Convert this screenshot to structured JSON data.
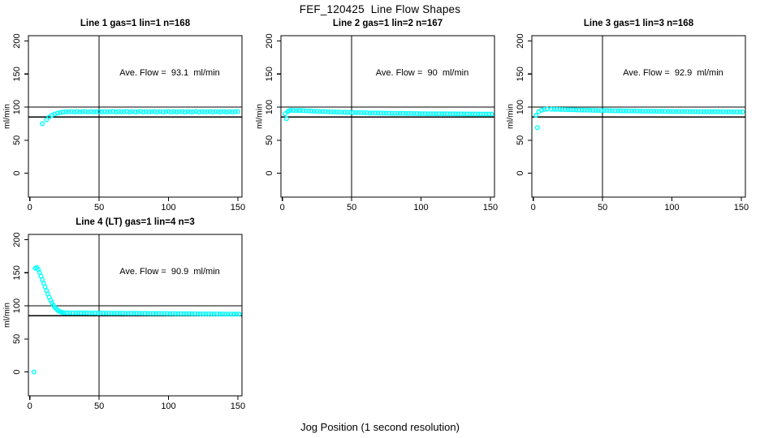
{
  "figure": {
    "title": "FEF_120425  Line Flow Shapes",
    "xlabel": "Jog Position (1 second resolution)",
    "background": "#ffffff",
    "point_color": "#00ffff",
    "line_color": "#000000"
  },
  "chart_data": [
    {
      "type": "scatter",
      "title": "Line 1 gas=1 lin=1 n=168",
      "annotation": "Ave. Flow =  93.1  ml/min",
      "ave_flow_ml_min": 93.1,
      "n": 168,
      "ylabel": "ml/min",
      "xlim": [
        -1,
        153
      ],
      "ylim": [
        -36,
        208
      ],
      "xticks": [
        0,
        50,
        100,
        150
      ],
      "yticks": [
        0,
        50,
        100,
        150,
        200
      ],
      "hlines": [
        85,
        100
      ],
      "vline": 50,
      "grid": false,
      "points": [
        [
          9,
          75
        ],
        [
          12,
          81
        ],
        [
          14,
          85
        ],
        [
          16,
          87.8
        ],
        [
          18,
          89.6
        ],
        [
          20,
          90.9
        ],
        [
          22,
          91.8
        ],
        [
          24,
          92.4
        ],
        [
          26,
          92.8
        ],
        [
          28,
          93.0
        ],
        [
          30,
          93.4
        ],
        [
          32,
          92.6
        ],
        [
          34,
          93.2
        ],
        [
          36,
          92.8
        ],
        [
          38,
          93.0
        ],
        [
          40,
          93.4
        ],
        [
          42,
          92.6
        ],
        [
          44,
          93.2
        ],
        [
          46,
          92.8
        ],
        [
          48,
          93.0
        ],
        [
          50,
          93.4
        ],
        [
          52,
          92.6
        ],
        [
          54,
          93.2
        ],
        [
          56,
          92.8
        ],
        [
          58,
          93.0
        ],
        [
          60,
          93.4
        ],
        [
          62,
          92.6
        ],
        [
          64,
          93.2
        ],
        [
          66,
          92.8
        ],
        [
          68,
          93.0
        ],
        [
          70,
          93.4
        ],
        [
          72,
          92.6
        ],
        [
          74,
          93.2
        ],
        [
          76,
          92.8
        ],
        [
          78,
          93.0
        ],
        [
          80,
          93.4
        ],
        [
          82,
          92.6
        ],
        [
          84,
          93.2
        ],
        [
          86,
          92.8
        ],
        [
          88,
          93.0
        ],
        [
          90,
          93.4
        ],
        [
          92,
          92.6
        ],
        [
          94,
          93.2
        ],
        [
          96,
          92.8
        ],
        [
          98,
          93.0
        ],
        [
          100,
          93.4
        ],
        [
          102,
          92.6
        ],
        [
          104,
          93.2
        ],
        [
          106,
          92.8
        ],
        [
          108,
          93.0
        ],
        [
          110,
          93.4
        ],
        [
          112,
          92.6
        ],
        [
          114,
          93.2
        ],
        [
          116,
          92.8
        ],
        [
          118,
          93.0
        ],
        [
          120,
          93.4
        ],
        [
          122,
          92.6
        ],
        [
          124,
          93.2
        ],
        [
          126,
          92.8
        ],
        [
          128,
          93.0
        ],
        [
          130,
          93.4
        ],
        [
          132,
          92.6
        ],
        [
          134,
          93.2
        ],
        [
          136,
          92.8
        ],
        [
          138,
          93.0
        ],
        [
          140,
          93.4
        ],
        [
          142,
          92.6
        ],
        [
          144,
          93.2
        ],
        [
          146,
          92.8
        ],
        [
          148,
          93.0
        ],
        [
          150,
          93.4
        ]
      ]
    },
    {
      "type": "scatter",
      "title": "Line 2 gas=1 lin=2 n=167",
      "annotation": "Ave. Flow =  90  ml/min",
      "ave_flow_ml_min": 90,
      "n": 167,
      "ylabel": "ml/min",
      "xlim": [
        -1,
        153
      ],
      "ylim": [
        -36,
        208
      ],
      "xticks": [
        0,
        50,
        100,
        150
      ],
      "yticks": [
        0,
        50,
        100,
        150,
        200
      ],
      "hlines": [
        85,
        100
      ],
      "vline": 50,
      "grid": false,
      "points": [
        [
          3,
          82.5
        ],
        [
          2,
          90
        ],
        [
          4,
          93.5
        ],
        [
          5,
          94.5
        ],
        [
          6,
          95.2
        ],
        [
          8,
          95.1
        ],
        [
          10,
          94.9
        ],
        [
          12,
          94.8
        ],
        [
          13,
          94.8
        ],
        [
          15,
          94.7
        ],
        [
          17,
          94.5
        ],
        [
          19,
          94.3
        ],
        [
          21,
          94.1
        ],
        [
          23,
          93.9
        ],
        [
          25,
          93.7
        ],
        [
          27,
          93.5
        ],
        [
          29,
          93.4
        ],
        [
          31,
          93.2
        ],
        [
          33,
          93.0
        ],
        [
          35,
          92.9
        ],
        [
          37,
          92.7
        ],
        [
          39,
          92.6
        ],
        [
          41,
          92.5
        ],
        [
          43,
          92.3
        ],
        [
          45,
          92.2
        ],
        [
          47,
          92.1
        ],
        [
          49,
          92.0
        ],
        [
          51,
          91.9
        ],
        [
          53,
          91.8
        ],
        [
          55,
          91.7
        ],
        [
          57,
          91.6
        ],
        [
          59,
          91.5
        ],
        [
          61,
          91.4
        ],
        [
          63,
          91.3
        ],
        [
          65,
          91.2
        ],
        [
          67,
          91.1
        ],
        [
          69,
          91.1
        ],
        [
          71,
          91.0
        ],
        [
          73,
          90.9
        ],
        [
          75,
          90.9
        ],
        [
          77,
          90.8
        ],
        [
          79,
          90.7
        ],
        [
          81,
          90.7
        ],
        [
          83,
          90.6
        ],
        [
          85,
          90.6
        ],
        [
          87,
          90.5
        ],
        [
          89,
          90.5
        ],
        [
          91,
          90.4
        ],
        [
          93,
          90.4
        ],
        [
          95,
          90.3
        ],
        [
          97,
          90.3
        ],
        [
          99,
          90.2
        ],
        [
          101,
          90.2
        ],
        [
          103,
          90.2
        ],
        [
          105,
          90.1
        ],
        [
          107,
          90.1
        ],
        [
          109,
          90.1
        ],
        [
          111,
          90.0
        ],
        [
          113,
          90.0
        ],
        [
          115,
          90.0
        ],
        [
          117,
          89.9
        ],
        [
          119,
          89.9
        ],
        [
          121,
          89.9
        ],
        [
          123,
          89.9
        ],
        [
          125,
          89.8
        ],
        [
          127,
          89.8
        ],
        [
          129,
          89.8
        ],
        [
          131,
          89.8
        ],
        [
          133,
          89.7
        ],
        [
          135,
          89.7
        ],
        [
          137,
          89.7
        ],
        [
          139,
          89.7
        ],
        [
          141,
          89.7
        ],
        [
          143,
          89.6
        ],
        [
          145,
          89.6
        ],
        [
          147,
          89.6
        ],
        [
          149,
          89.6
        ],
        [
          151,
          89.6
        ]
      ]
    },
    {
      "type": "scatter",
      "title": "Line 3 gas=1 lin=3 n=168",
      "annotation": "Ave. Flow =  92.9  ml/min",
      "ave_flow_ml_min": 92.9,
      "n": 168,
      "ylabel": "ml/min",
      "xlim": [
        -1,
        153
      ],
      "ylim": [
        -36,
        208
      ],
      "xticks": [
        0,
        50,
        100,
        150
      ],
      "yticks": [
        0,
        50,
        100,
        150,
        200
      ],
      "hlines": [
        85,
        100
      ],
      "vline": 50,
      "grid": false,
      "points": [
        [
          3,
          69
        ],
        [
          2,
          87.5
        ],
        [
          4,
          93
        ],
        [
          6,
          95.5
        ],
        [
          8,
          96.5
        ],
        [
          10,
          97
        ],
        [
          13,
          96.9
        ],
        [
          15,
          96.8
        ],
        [
          17,
          96.7
        ],
        [
          19,
          96.5
        ],
        [
          21,
          96.4
        ],
        [
          23,
          96.3
        ],
        [
          25,
          96.2
        ],
        [
          27,
          96.0
        ],
        [
          29,
          95.9
        ],
        [
          31,
          95.8
        ],
        [
          33,
          95.7
        ],
        [
          35,
          95.6
        ],
        [
          37,
          95.5
        ],
        [
          39,
          95.4
        ],
        [
          41,
          95.3
        ],
        [
          43,
          95.2
        ],
        [
          45,
          95.1
        ],
        [
          47,
          95.0
        ],
        [
          49,
          94.9
        ],
        [
          51,
          94.8
        ],
        [
          53,
          94.8
        ],
        [
          55,
          94.7
        ],
        [
          57,
          94.6
        ],
        [
          59,
          94.5
        ],
        [
          61,
          94.5
        ],
        [
          63,
          94.4
        ],
        [
          65,
          94.3
        ],
        [
          67,
          94.3
        ],
        [
          69,
          94.2
        ],
        [
          71,
          94.1
        ],
        [
          73,
          94.1
        ],
        [
          75,
          94.0
        ],
        [
          77,
          94.0
        ],
        [
          79,
          93.9
        ],
        [
          81,
          93.9
        ],
        [
          83,
          93.8
        ],
        [
          85,
          93.8
        ],
        [
          87,
          93.7
        ],
        [
          89,
          93.7
        ],
        [
          91,
          93.6
        ],
        [
          93,
          93.6
        ],
        [
          95,
          93.5
        ],
        [
          97,
          93.5
        ],
        [
          99,
          93.5
        ],
        [
          101,
          93.4
        ],
        [
          103,
          93.4
        ],
        [
          105,
          93.4
        ],
        [
          107,
          93.3
        ],
        [
          109,
          93.3
        ],
        [
          111,
          93.3
        ],
        [
          113,
          93.2
        ],
        [
          115,
          93.2
        ],
        [
          117,
          93.2
        ],
        [
          119,
          93.1
        ],
        [
          121,
          93.1
        ],
        [
          123,
          93.1
        ],
        [
          125,
          93.1
        ],
        [
          127,
          93.0
        ],
        [
          129,
          93.0
        ],
        [
          131,
          93.0
        ],
        [
          133,
          93.0
        ],
        [
          135,
          92.9
        ],
        [
          137,
          92.9
        ],
        [
          139,
          92.9
        ],
        [
          141,
          92.9
        ],
        [
          143,
          92.9
        ],
        [
          145,
          92.8
        ],
        [
          147,
          92.8
        ],
        [
          149,
          92.8
        ],
        [
          151,
          92.8
        ]
      ]
    },
    {
      "type": "scatter",
      "title": "Line 4 (LT) gas=1 lin=4 n=3",
      "annotation": "Ave. Flow =  90.9  ml/min",
      "ave_flow_ml_min": 90.9,
      "n": 3,
      "ylabel": "ml/min",
      "xlim": [
        -1,
        153
      ],
      "ylim": [
        -36,
        208
      ],
      "xticks": [
        0,
        50,
        100,
        150
      ],
      "yticks": [
        0,
        50,
        100,
        150,
        200
      ],
      "hlines": [
        85,
        100
      ],
      "vline": 50,
      "grid": false,
      "points": [
        [
          3,
          0
        ],
        [
          4,
          157
        ],
        [
          5,
          158
        ],
        [
          6,
          155
        ],
        [
          7,
          150.5
        ],
        [
          8,
          145
        ],
        [
          9,
          139.5
        ],
        [
          10,
          134
        ],
        [
          11,
          128.5
        ],
        [
          12,
          123
        ],
        [
          13,
          118
        ],
        [
          14,
          113
        ],
        [
          15,
          108.5
        ],
        [
          16,
          104.5
        ],
        [
          17,
          101
        ],
        [
          18,
          98
        ],
        [
          19,
          95.5
        ],
        [
          20,
          93.5
        ],
        [
          21,
          92
        ],
        [
          22,
          91
        ],
        [
          23,
          90.3
        ],
        [
          24,
          89.8
        ],
        [
          25,
          89.6
        ],
        [
          27,
          89.5
        ],
        [
          29,
          89.5
        ],
        [
          31,
          89.4
        ],
        [
          33,
          89.4
        ],
        [
          35,
          89.4
        ],
        [
          37,
          89.3
        ],
        [
          39,
          89.3
        ],
        [
          41,
          89.3
        ],
        [
          43,
          89.2
        ],
        [
          45,
          89.2
        ],
        [
          47,
          89.2
        ],
        [
          49,
          89.1
        ],
        [
          51,
          89.1
        ],
        [
          53,
          89.1
        ],
        [
          55,
          89.1
        ],
        [
          57,
          89.0
        ],
        [
          59,
          89.0
        ],
        [
          61,
          89.0
        ],
        [
          63,
          88.9
        ],
        [
          65,
          88.9
        ],
        [
          67,
          88.9
        ],
        [
          69,
          88.8
        ],
        [
          71,
          88.8
        ],
        [
          73,
          88.8
        ],
        [
          75,
          88.7
        ],
        [
          77,
          88.7
        ],
        [
          79,
          88.7
        ],
        [
          81,
          88.6
        ],
        [
          83,
          88.6
        ],
        [
          85,
          88.6
        ],
        [
          87,
          88.5
        ],
        [
          89,
          88.5
        ],
        [
          91,
          88.5
        ],
        [
          93,
          88.4
        ],
        [
          95,
          88.4
        ],
        [
          97,
          88.4
        ],
        [
          99,
          88.3
        ],
        [
          101,
          88.3
        ],
        [
          103,
          88.3
        ],
        [
          105,
          88.2
        ],
        [
          107,
          88.2
        ],
        [
          109,
          88.2
        ],
        [
          111,
          88.1
        ],
        [
          113,
          88.1
        ],
        [
          115,
          88.1
        ],
        [
          117,
          88.0
        ],
        [
          119,
          88.0
        ],
        [
          121,
          88.0
        ],
        [
          123,
          87.9
        ],
        [
          125,
          87.9
        ],
        [
          127,
          87.9
        ],
        [
          129,
          87.8
        ],
        [
          131,
          87.8
        ],
        [
          133,
          87.8
        ],
        [
          135,
          87.7
        ],
        [
          137,
          87.7
        ],
        [
          139,
          87.7
        ],
        [
          141,
          87.6
        ],
        [
          143,
          87.6
        ],
        [
          145,
          87.6
        ],
        [
          147,
          87.5
        ],
        [
          149,
          87.5
        ],
        [
          151,
          87.5
        ]
      ]
    }
  ]
}
